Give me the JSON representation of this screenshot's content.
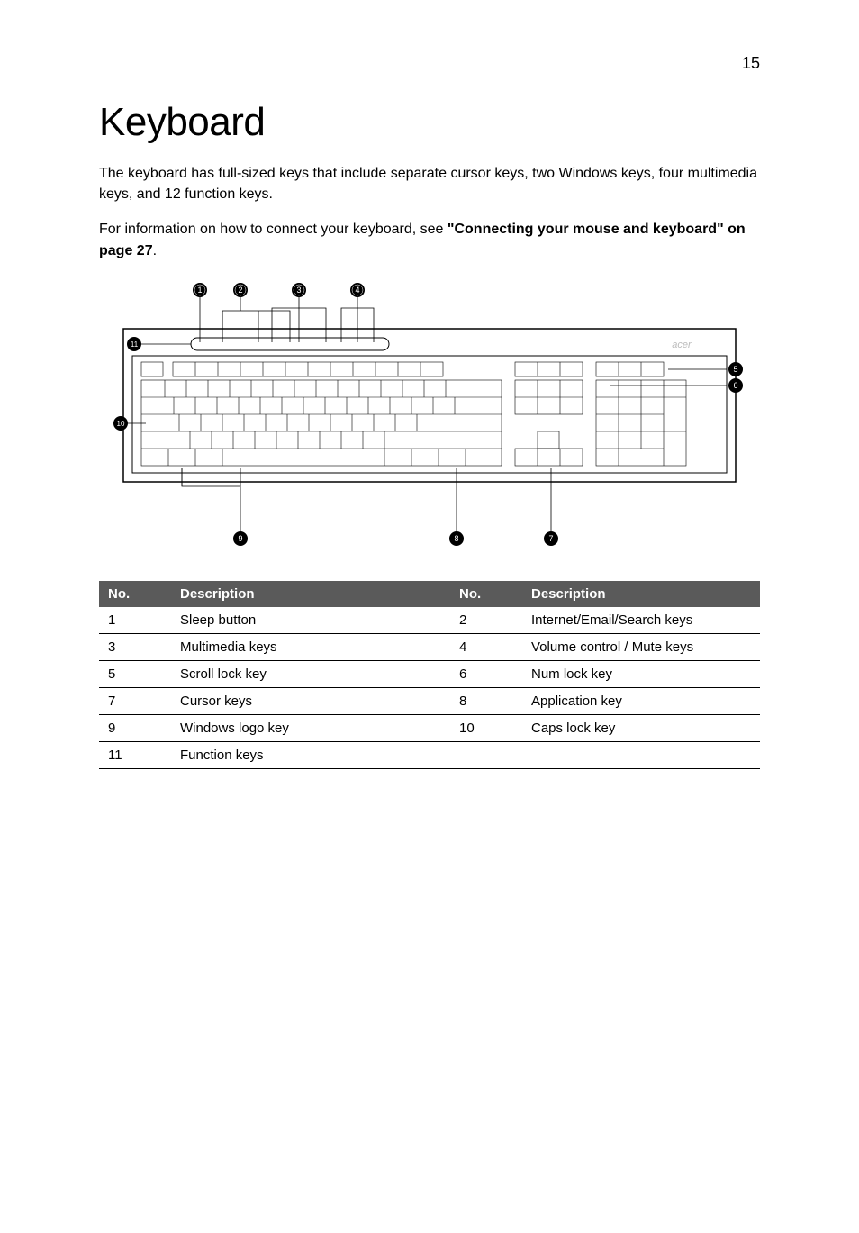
{
  "page_number": "15",
  "title": "Keyboard",
  "paragraph1": "The keyboard has full-sized keys that include separate cursor keys, two Windows keys, four multimedia keys, and 12 function keys.",
  "paragraph2_a": "For information on how to connect your keyboard, see ",
  "paragraph2_b": "\"Connecting your mouse and keyboard\" on page 27",
  "paragraph2_c": ".",
  "table": {
    "header_bg": "#5a5a5a",
    "col_no": "No.",
    "col_desc": "Description",
    "rows": [
      {
        "n1": "1",
        "d1": "Sleep button",
        "n2": "2",
        "d2": "Internet/Email/Search keys"
      },
      {
        "n1": "3",
        "d1": "Multimedia keys",
        "n2": "4",
        "d2": "Volume control / Mute keys"
      },
      {
        "n1": "5",
        "d1": "Scroll lock key",
        "n2": "6",
        "d2": "Num lock key"
      },
      {
        "n1": "7",
        "d1": "Cursor keys",
        "n2": "8",
        "d2": "Application key"
      },
      {
        "n1": "9",
        "d1": "Windows logo key",
        "n2": "10",
        "d2": "Caps lock key"
      },
      {
        "n1": "11",
        "d1": "Function keys",
        "n2": "",
        "d2": ""
      }
    ]
  },
  "figure": {
    "callouts": [
      "1",
      "2",
      "3",
      "4",
      "5",
      "6",
      "7",
      "8",
      "9",
      "10",
      "11"
    ],
    "brand": "acer"
  },
  "colors": {
    "text": "#000000",
    "bg": "#ffffff",
    "header_bg": "#5a5a5a",
    "header_fg": "#ffffff",
    "border": "#000000"
  }
}
